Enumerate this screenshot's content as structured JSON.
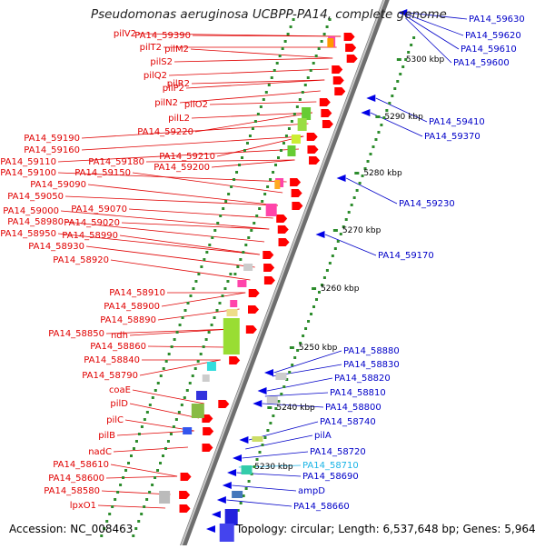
{
  "title": "Pseudomonas aeruginosa UCBPP-PA14, complete genome",
  "accession": "Accession: NC_008463",
  "topology": "Topology: circular; Length: 6,537,648 bp; Genes: 5,964",
  "ruler_ticks": [
    "5300 kbp",
    "5290 kbp",
    "5280 kbp",
    "5270 kbp",
    "5260 kbp",
    "5250 kbp",
    "5240 kbp",
    "5230 kbp"
  ],
  "left_labels": [
    "pilV2",
    "PA14_59390",
    "pilT2",
    "pilM2",
    "pilS2",
    "pilQ2",
    "pilR2",
    "pilP2",
    "pilN2",
    "pilO2",
    "pilL2",
    "PA14_59220",
    "PA14_59190",
    "PA14_59160",
    "PA14_59210",
    "PA14_59110",
    "PA14_59180",
    "PA14_59200",
    "PA14_59100",
    "PA14_59150",
    "PA14_59090",
    "PA14_59050",
    "PA14_59070",
    "PA14_59000",
    "PA14_59020",
    "PA14_58980",
    "PA14_58950",
    "PA14_58990",
    "PA14_58930",
    "PA14_58920",
    "PA14_58910",
    "PA14_58900",
    "PA14_58890",
    "PA14_58850",
    "ndh",
    "PA14_58860",
    "PA14_58840",
    "PA14_58790",
    "coaE",
    "pilD",
    "pilC",
    "pilB",
    "nadC",
    "PA14_58610",
    "PA14_58600",
    "PA14_58580",
    "lpxO1"
  ],
  "right_labels": [
    "PA14_59630",
    "PA14_59620",
    "PA14_59610",
    "PA14_59600",
    "PA14_59410",
    "PA14_59370",
    "PA14_59230",
    "PA14_59170",
    "PA14_58880",
    "PA14_58830",
    "PA14_58820",
    "PA14_58810",
    "PA14_58800",
    "PA14_58740",
    "pilA",
    "PA14_58720",
    "PA14_58710",
    "PA14_58690",
    "ampD",
    "PA14_58660"
  ],
  "colors": {
    "forward_label": "#e00000",
    "reverse_label": "#0000c8",
    "highlight_label": "#19b4e6",
    "backbone": "#8c8c8c",
    "tick_dots": "#2c8c2c"
  }
}
